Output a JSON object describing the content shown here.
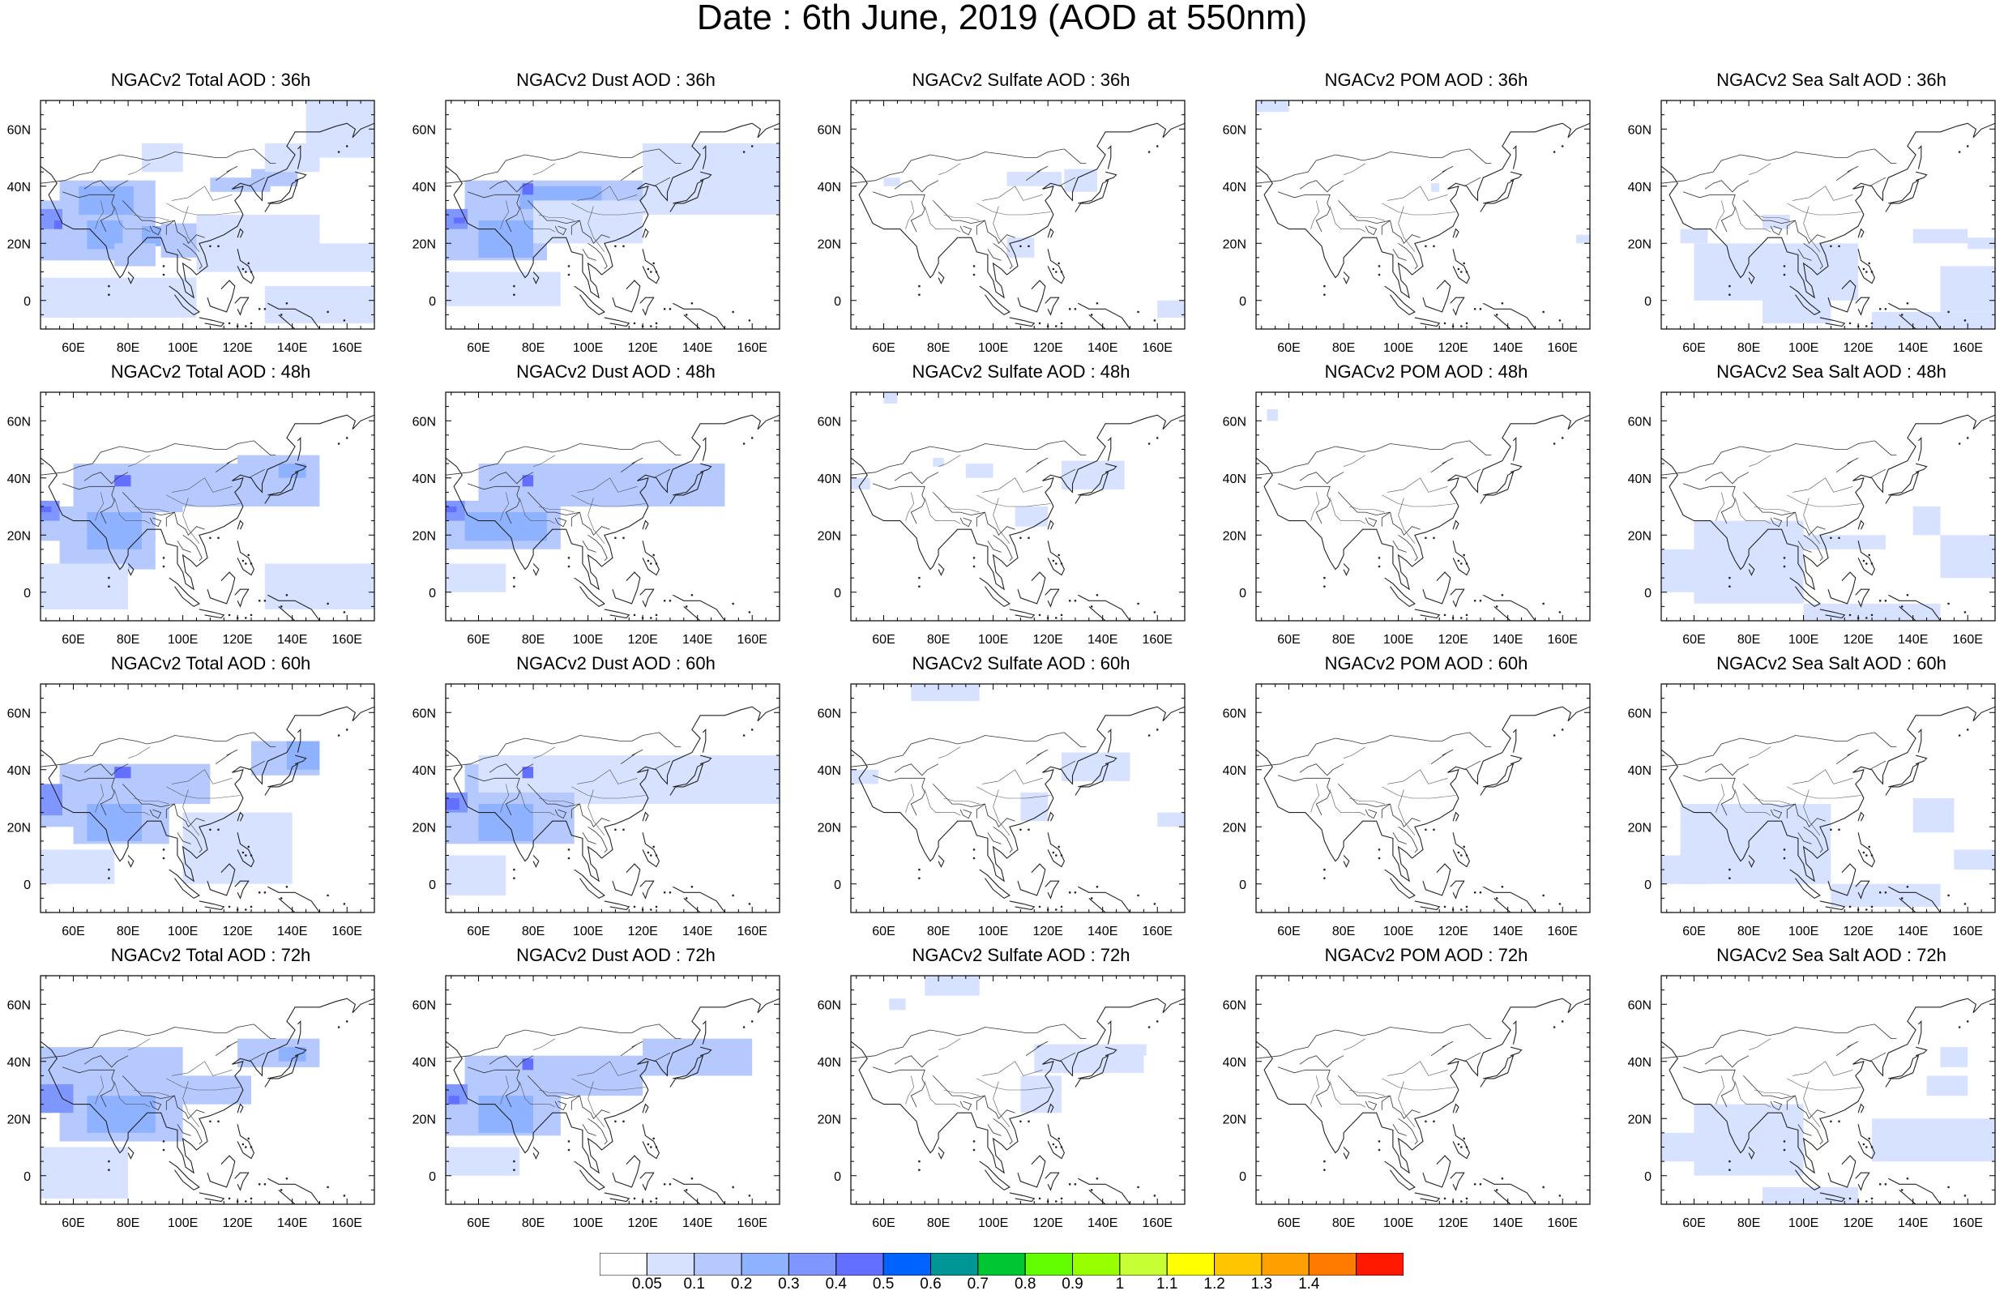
{
  "title": "Date : 6th June, 2019 (AOD at 550nm)",
  "axes": {
    "lon_labels": [
      "60E",
      "80E",
      "100E",
      "120E",
      "140E",
      "160E"
    ],
    "lon_values": [
      60,
      80,
      100,
      120,
      140,
      160
    ],
    "lat_labels": [
      "60N",
      "40N",
      "20N",
      "0"
    ],
    "lat_values": [
      60,
      40,
      20,
      0
    ],
    "lon_range": [
      48,
      170
    ],
    "lat_range": [
      -10,
      70
    ]
  },
  "rows": [
    {
      "hour": "36h",
      "titles": [
        "NGACv2 Total AOD : 36h",
        "NGACv2 Dust AOD : 36h",
        "NGACv2 Sulfate AOD : 36h",
        "NGACv2 POM AOD : 36h",
        "NGACv2 Sea Salt AOD : 36h"
      ]
    },
    {
      "hour": "48h",
      "titles": [
        "NGACv2 Total AOD : 48h",
        "NGACv2 Dust AOD : 48h",
        "NGACv2 Sulfate AOD : 48h",
        "NGACv2 POM AOD : 48h",
        "NGACv2 Sea Salt AOD : 48h"
      ]
    },
    {
      "hour": "60h",
      "titles": [
        "NGACv2 Total AOD : 60h",
        "NGACv2 Dust AOD : 60h",
        "NGACv2 Sulfate AOD : 60h",
        "NGACv2 POM AOD : 60h",
        "NGACv2 Sea Salt AOD : 60h"
      ]
    },
    {
      "hour": "72h",
      "titles": [
        "NGACv2 Total AOD : 72h",
        "NGACv2 Dust AOD : 72h",
        "NGACv2 Sulfate AOD : 72h",
        "NGACv2 POM AOD : 72h",
        "NGACv2 Sea Salt  AOD : 72h"
      ]
    }
  ],
  "colorbar": {
    "labels": [
      "0.05",
      "0.1",
      "0.2",
      "0.3",
      "0.4",
      "0.5",
      "0.6",
      "0.7",
      "0.8",
      "0.9",
      "1",
      "1.1",
      "1.2",
      "1.3",
      "1.4"
    ],
    "colors": [
      "#ffffff",
      "#d6e2ff",
      "#b5c9ff",
      "#8eb2ff",
      "#7f96ff",
      "#6370ff",
      "#0063ff",
      "#009696",
      "#00c633",
      "#63ff00",
      "#96ff00",
      "#c6ff33",
      "#ffff00",
      "#ffc600",
      "#ffa000",
      "#ff7c00",
      "#ff1900"
    ]
  }
}
